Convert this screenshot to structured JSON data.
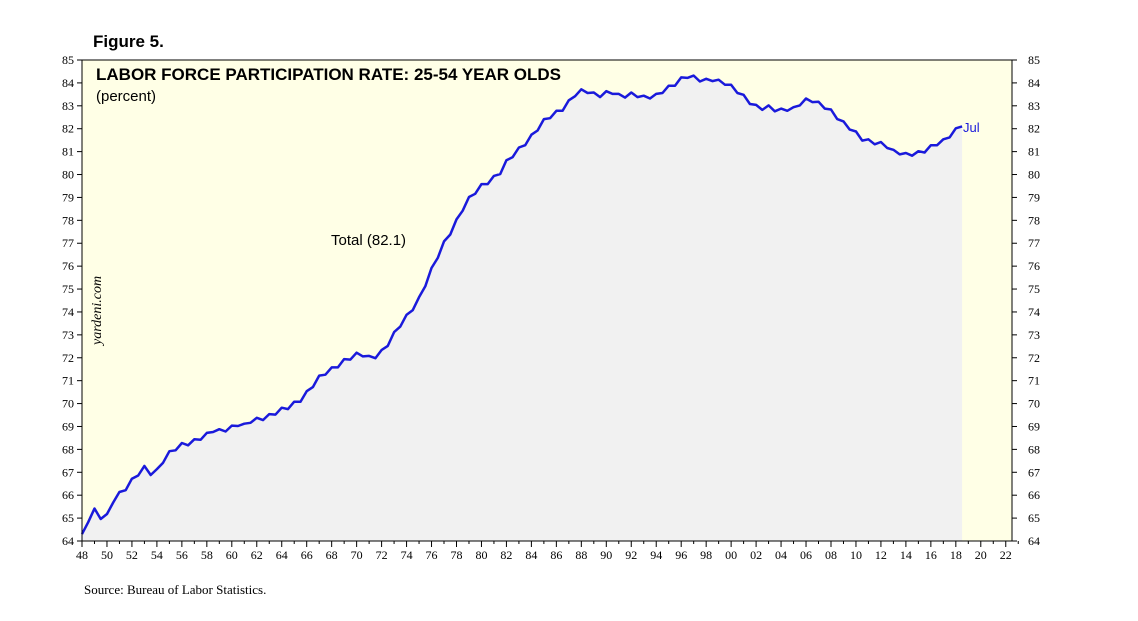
{
  "figure_label": "Figure 5.",
  "source": "Source: Bureau of Labor Statistics.",
  "colors": {
    "plot_background": "#ffffe6",
    "area_fill": "#f1f1f1",
    "series_line": "#1a1adb",
    "axis": "#000000"
  },
  "chart_data": {
    "type": "line",
    "title": "LABOR FORCE PARTICIPATION RATE: 25-54 YEAR OLDS",
    "subtitle": "(percent)",
    "watermark": "yardeni.com",
    "series_label": "Total (82.1)",
    "end_label": "Jul",
    "ylim": [
      64,
      85
    ],
    "xlim": [
      1948,
      2022.5
    ],
    "yticks": [
      64,
      65,
      66,
      67,
      68,
      69,
      70,
      71,
      72,
      73,
      74,
      75,
      76,
      77,
      78,
      79,
      80,
      81,
      82,
      83,
      84,
      85
    ],
    "xticks": [
      "48",
      "50",
      "52",
      "54",
      "56",
      "58",
      "60",
      "62",
      "64",
      "66",
      "68",
      "70",
      "72",
      "74",
      "76",
      "78",
      "80",
      "82",
      "84",
      "86",
      "88",
      "90",
      "92",
      "94",
      "96",
      "98",
      "00",
      "02",
      "04",
      "06",
      "08",
      "10",
      "12",
      "14",
      "16",
      "18",
      "20",
      "22"
    ],
    "grid": false,
    "series": [
      {
        "name": "Total",
        "x": [
          1948.0,
          1948.5,
          1949.0,
          1949.5,
          1950.0,
          1950.5,
          1951.0,
          1951.5,
          1952.0,
          1952.5,
          1953.0,
          1953.5,
          1954.0,
          1954.5,
          1955.0,
          1955.5,
          1956.0,
          1956.5,
          1957.0,
          1957.5,
          1958.0,
          1958.5,
          1959.0,
          1959.5,
          1960.0,
          1960.5,
          1961.0,
          1961.5,
          1962.0,
          1962.5,
          1963.0,
          1963.5,
          1964.0,
          1964.5,
          1965.0,
          1965.5,
          1966.0,
          1966.5,
          1967.0,
          1967.5,
          1968.0,
          1968.5,
          1969.0,
          1969.5,
          1970.0,
          1970.5,
          1971.0,
          1971.5,
          1972.0,
          1972.5,
          1973.0,
          1973.5,
          1974.0,
          1974.5,
          1975.0,
          1975.5,
          1976.0,
          1976.5,
          1977.0,
          1977.5,
          1978.0,
          1978.5,
          1979.0,
          1979.5,
          1980.0,
          1980.5,
          1981.0,
          1981.5,
          1982.0,
          1982.5,
          1983.0,
          1983.5,
          1984.0,
          1984.5,
          1985.0,
          1985.5,
          1986.0,
          1986.5,
          1987.0,
          1987.5,
          1988.0,
          1988.5,
          1989.0,
          1989.5,
          1990.0,
          1990.5,
          1991.0,
          1991.5,
          1992.0,
          1992.5,
          1993.0,
          1993.5,
          1994.0,
          1994.5,
          1995.0,
          1995.5,
          1996.0,
          1996.5,
          1997.0,
          1997.5,
          1998.0,
          1998.5,
          1999.0,
          1999.5,
          2000.0,
          2000.5,
          2001.0,
          2001.5,
          2002.0,
          2002.5,
          2003.0,
          2003.5,
          2004.0,
          2004.5,
          2005.0,
          2005.5,
          2006.0,
          2006.5,
          2007.0,
          2007.5,
          2008.0,
          2008.5,
          2009.0,
          2009.5,
          2010.0,
          2010.5,
          2011.0,
          2011.5,
          2012.0,
          2012.5,
          2013.0,
          2013.5,
          2014.0,
          2014.5,
          2015.0,
          2015.5,
          2016.0,
          2016.5,
          2017.0,
          2017.5,
          2018.0,
          2018.5
        ],
        "values": [
          64.3,
          64.9,
          65.3,
          65.0,
          65.1,
          65.8,
          66.1,
          66.3,
          66.6,
          66.9,
          67.2,
          67.0,
          67.1,
          67.5,
          67.8,
          68.0,
          68.2,
          68.3,
          68.4,
          68.5,
          68.6,
          68.8,
          68.8,
          68.9,
          69.0,
          69.1,
          69.0,
          69.2,
          69.3,
          69.4,
          69.5,
          69.6,
          69.7,
          69.8,
          70.0,
          70.2,
          70.5,
          70.8,
          71.1,
          71.3,
          71.5,
          71.7,
          71.9,
          72.0,
          72.1,
          72.1,
          72.0,
          72.1,
          72.3,
          72.6,
          73.0,
          73.4,
          73.8,
          74.2,
          74.6,
          75.2,
          75.8,
          76.4,
          77.0,
          77.5,
          78.0,
          78.5,
          78.9,
          79.2,
          79.5,
          79.7,
          79.9,
          80.1,
          80.5,
          80.8,
          81.1,
          81.4,
          81.7,
          82.0,
          82.3,
          82.5,
          82.7,
          82.9,
          83.2,
          83.5,
          83.6,
          83.6,
          83.5,
          83.5,
          83.6,
          83.6,
          83.4,
          83.4,
          83.5,
          83.5,
          83.4,
          83.4,
          83.4,
          83.6,
          83.8,
          84.0,
          84.2,
          84.3,
          84.2,
          84.1,
          84.1,
          84.2,
          84.1,
          84.0,
          83.8,
          83.6,
          83.4,
          83.2,
          83.0,
          82.9,
          82.9,
          82.8,
          82.8,
          82.9,
          82.9,
          83.1,
          83.2,
          83.2,
          83.1,
          83.0,
          82.8,
          82.5,
          82.2,
          82.0,
          81.8,
          81.6,
          81.5,
          81.4,
          81.3,
          81.2,
          81.0,
          81.0,
          80.9,
          80.9,
          80.9,
          81.0,
          81.2,
          81.4,
          81.5,
          81.7,
          81.9,
          82.1
        ]
      }
    ]
  }
}
